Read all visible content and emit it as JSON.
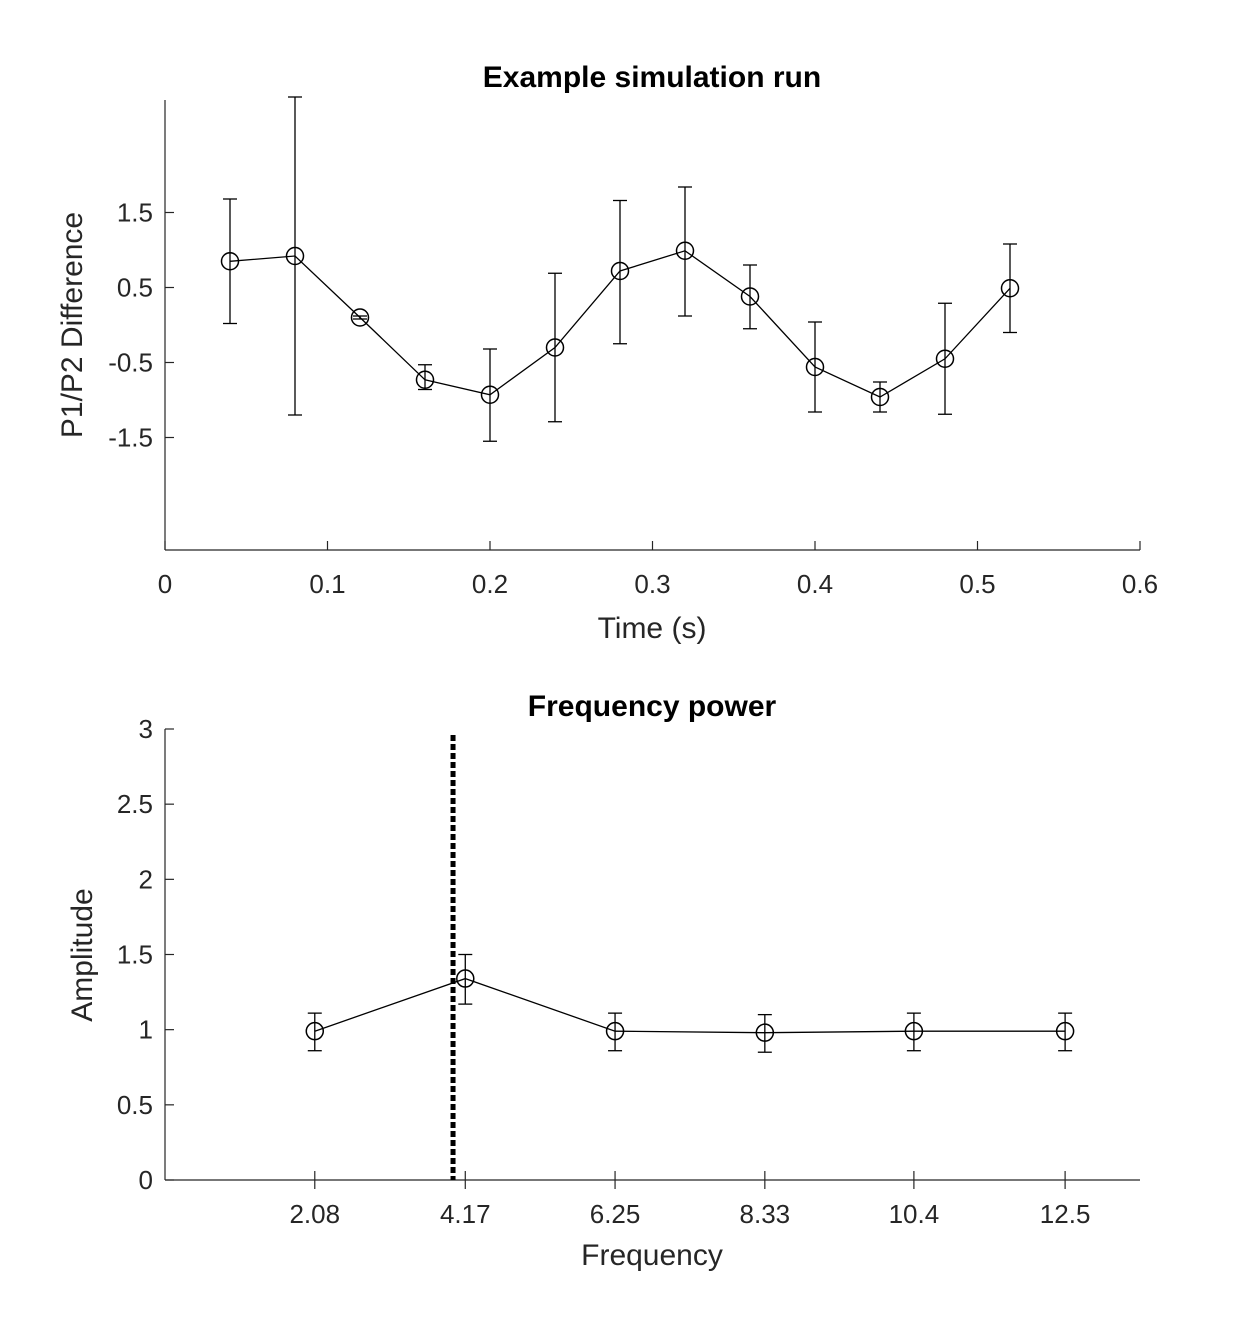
{
  "chart_data": [
    {
      "type": "line",
      "title": "Example simulation run",
      "xlabel": "Time (s)",
      "ylabel": "P1/P2 Difference",
      "xlim": [
        0,
        0.6
      ],
      "ylim": [
        -3,
        3
      ],
      "xticks": [
        0,
        0.1,
        0.2,
        0.3,
        0.4,
        0.5,
        0.6
      ],
      "xtick_labels": [
        "0",
        "0.1",
        "0.2",
        "0.3",
        "0.4",
        "0.5",
        "0.6"
      ],
      "yticks": [
        -1.5,
        -0.5,
        0.5,
        1.5
      ],
      "ytick_labels": [
        "-1.5",
        "-0.5",
        "0.5",
        "1.5"
      ],
      "grid": false,
      "marker": "open-circle",
      "series": [
        {
          "x": [
            0.04,
            0.08,
            0.12,
            0.16,
            0.2,
            0.24,
            0.28,
            0.32,
            0.36,
            0.4,
            0.44,
            0.48,
            0.52
          ],
          "y": [
            0.85,
            0.92,
            0.1,
            -0.73,
            -0.93,
            -0.3,
            0.72,
            0.99,
            0.38,
            -0.56,
            -0.96,
            -0.45,
            0.49
          ],
          "err_low": [
            0.83,
            2.12,
            0.02,
            0.13,
            0.62,
            0.99,
            0.97,
            0.87,
            0.43,
            0.6,
            0.2,
            0.74,
            0.59
          ],
          "err_high": [
            0.83,
            2.12,
            0.02,
            0.2,
            0.61,
            0.99,
            0.94,
            0.85,
            0.42,
            0.6,
            0.2,
            0.74,
            0.59
          ]
        }
      ]
    },
    {
      "type": "line",
      "title": "Frequency power",
      "xlabel": "Frequency",
      "ylabel": "Amplitude",
      "xlim": [
        0,
        13.54
      ],
      "ylim": [
        0,
        3
      ],
      "xticks": [
        2.08,
        4.17,
        6.25,
        8.33,
        10.4,
        12.5
      ],
      "xtick_labels": [
        "2.08",
        "4.17",
        "6.25",
        "8.33",
        "10.4",
        "12.5"
      ],
      "yticks": [
        0,
        0.5,
        1,
        1.5,
        2,
        2.5,
        3
      ],
      "ytick_labels": [
        "0",
        "0.5",
        "1",
        "1.5",
        "2",
        "2.5",
        "3"
      ],
      "grid": false,
      "marker": "open-circle",
      "reference_line": {
        "orientation": "vertical",
        "x": 4.0,
        "style": "dashed"
      },
      "series": [
        {
          "x": [
            2.08,
            4.17,
            6.25,
            8.33,
            10.4,
            12.5
          ],
          "y": [
            0.99,
            1.34,
            0.99,
            0.98,
            0.99,
            0.99
          ],
          "err_low": [
            0.13,
            0.17,
            0.13,
            0.13,
            0.13,
            0.13
          ],
          "err_high": [
            0.12,
            0.16,
            0.12,
            0.12,
            0.12,
            0.12
          ]
        }
      ]
    }
  ]
}
